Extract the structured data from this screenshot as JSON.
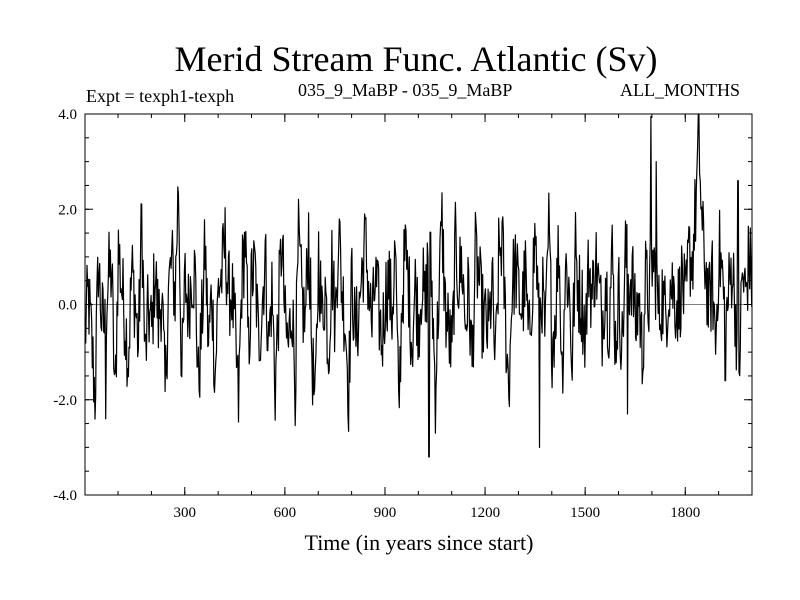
{
  "chart_data": {
    "type": "line",
    "title": "Merid Stream Func. Atlantic (Sv)",
    "annotations": {
      "left": "Expt = texph1-texph",
      "center": "035_9_MaBP - 035_9_MaBP",
      "right": "ALL_MONTHS"
    },
    "xlabel": "Time (in years since start)",
    "ylabel": "",
    "xlim": [
      1,
      2000
    ],
    "ylim": [
      -4.0,
      4.0
    ],
    "x_ticks": [
      300,
      600,
      900,
      1200,
      1500,
      1800
    ],
    "x_tick_labels": [
      "300",
      "600",
      "900",
      "1200",
      "1500",
      "1800"
    ],
    "y_ticks": [
      -4.0,
      -2.0,
      0.0,
      2.0,
      4.0
    ],
    "y_tick_labels": [
      "-4.0",
      "-2.0",
      "0.0",
      "2.0",
      "4.0"
    ],
    "reference_line": 0.0,
    "series": [
      {
        "color": "#000000",
        "x_start": 1,
        "x_step": 10,
        "values": [
          -0.6,
          0.2,
          -0.8,
          -1.9,
          0.9,
          -0.3,
          -0.5,
          0.6,
          0.7,
          -2.1,
          1.2,
          0.4,
          -0.3,
          -1.1,
          0.7,
          0.1,
          -0.9,
          1.9,
          -1.2,
          -0.1,
          -0.6,
          0.8,
          -0.4,
          0.3,
          -2.0,
          0.3,
          0.9,
          0.2,
          2.6,
          -1.6,
          0.5,
          -0.1,
          0.7,
          0.6,
          -1.7,
          -0.4,
          1.2,
          -0.9,
          0.3,
          -1.5,
          0.4,
          0.6,
          1.3,
          0.2,
          0.3,
          -0.7,
          -2.1,
          0.5,
          1.4,
          -1.0,
          0.6,
          0.7,
          -0.8,
          -0.1,
          1.1,
          -0.9,
          0.3,
          -1.7,
          -0.1,
          1.4,
          -0.5,
          -0.9,
          0.1,
          -1.6,
          1.3,
          0.1,
          -0.4,
          1.6,
          -1.0,
          -2.3,
          1.1,
          -0.3,
          0.4,
          -1.0,
          0.9,
          -0.4,
          1.7,
          0.3,
          -0.3,
          -1.8,
          0.6,
          -0.7,
          -0.2,
          0.7,
          1.3,
          0.4,
          -0.5,
          0.5,
          -0.1,
          -0.8,
          0.2,
          0.5,
          -0.2,
          1.2,
          -2.3,
          0.1,
          1.1,
          0.4,
          -0.8,
          0.4,
          -0.4,
          0.6,
          -0.2,
          1.4,
          0.3,
          -1.8,
          0.2,
          1.7,
          -0.1,
          -0.6,
          -1.1,
          1.2,
          0.5,
          0.9,
          -0.4,
          0.3,
          -1.3,
          1.0,
          0.6,
          -0.2,
          -0.4,
          -0.6,
          0.5,
          -1.4,
          0.9,
          1.4,
          -0.3,
          -1.8,
          0.4,
          0.8,
          0.2,
          -0.1,
          0.6,
          -0.9,
          0.4,
          1.5,
          -0.4,
          0.3,
          -0.7,
          1.6,
          -0.8,
          -0.2,
          1.3,
          -1.4,
          0.8,
          0.4,
          -1.2,
          1.1,
          0.3,
          0.0,
          -0.6,
          0.9,
          0.1,
          1.0,
          0.3,
          -0.4,
          0.6,
          -0.3,
          1.0,
          -0.8,
          0.2,
          -0.9,
          1.1,
          0.4,
          0.7,
          -0.5,
          0.2,
          -1.1,
          0.5,
          0.1,
          0.9,
          0.6,
          -0.2,
          0.2,
          -0.3,
          0.5,
          0.4,
          0.1,
          0.0,
          0.6,
          -0.2,
          1.1,
          0.9,
          2.0,
          3.5,
          1.4,
          0.8,
          -0.1,
          0.5,
          -0.8,
          1.2,
          0.6,
          -0.5,
          0.3,
          0.9,
          -0.2,
          -1.4,
          0.6,
          0.2,
          1.0,
          0.4,
          -0.6,
          0.5,
          1.3,
          0.3,
          0.8,
          0.1
        ]
      }
    ],
    "spikes": [
      {
        "x": 63,
        "y": -2.4
      },
      {
        "x": 1032,
        "y": -3.2
      },
      {
        "x": 1363,
        "y": -3.0
      },
      {
        "x": 1627,
        "y": -2.3
      },
      {
        "x": 1697,
        "y": 3.95
      },
      {
        "x": 1713,
        "y": 3.0
      },
      {
        "x": 1958,
        "y": 2.6
      },
      {
        "x": 1920,
        "y": -1.6
      }
    ]
  }
}
